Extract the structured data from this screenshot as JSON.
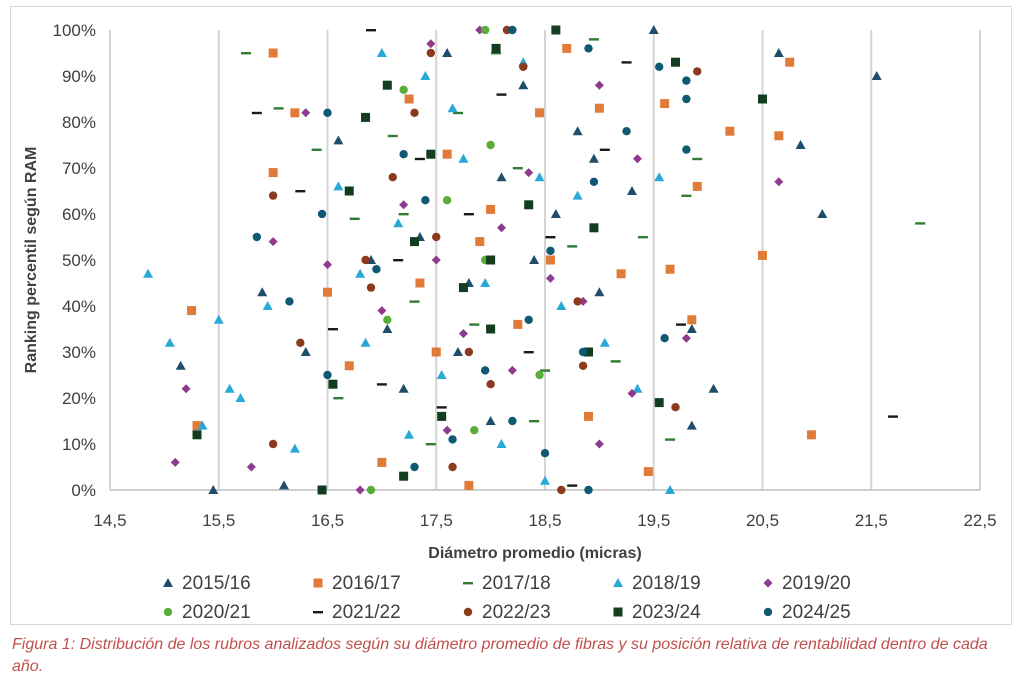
{
  "chart_data": {
    "type": "scatter",
    "xlabel": "Diámetro promedio (micras)",
    "ylabel": "Ranking percentil según RAM",
    "xlim": [
      14.5,
      22.5
    ],
    "ylim": [
      0,
      1
    ],
    "x_ticks": [
      "14,5",
      "15,5",
      "16,5",
      "17,5",
      "18,5",
      "19,5",
      "20,5",
      "21,5",
      "22,5"
    ],
    "y_ticks": [
      "0%",
      "10%",
      "20%",
      "30%",
      "40%",
      "50%",
      "60%",
      "70%",
      "80%",
      "90%",
      "100%"
    ],
    "grid": "vertical",
    "legend_position": "bottom",
    "series": [
      {
        "name": "2015/16",
        "marker": "triangle",
        "color": "#1f4e6b",
        "points": [
          [
            15.45,
            0.0
          ],
          [
            15.15,
            0.27
          ],
          [
            15.9,
            0.43
          ],
          [
            16.3,
            0.3
          ],
          [
            16.6,
            0.76
          ],
          [
            16.9,
            0.5
          ],
          [
            17.2,
            0.22
          ],
          [
            17.35,
            0.55
          ],
          [
            17.6,
            0.95
          ],
          [
            17.8,
            0.45
          ],
          [
            18.0,
            0.15
          ],
          [
            18.1,
            0.68
          ],
          [
            18.3,
            0.88
          ],
          [
            18.6,
            0.6
          ],
          [
            18.8,
            0.78
          ],
          [
            19.0,
            0.43
          ],
          [
            19.3,
            0.65
          ],
          [
            19.5,
            1.0
          ],
          [
            19.85,
            0.14
          ],
          [
            20.05,
            0.22
          ],
          [
            20.65,
            0.95
          ],
          [
            20.85,
            0.75
          ],
          [
            21.05,
            0.6
          ],
          [
            21.55,
            0.9
          ],
          [
            16.1,
            0.01
          ],
          [
            17.05,
            0.35
          ],
          [
            17.7,
            0.3
          ],
          [
            18.4,
            0.5
          ],
          [
            18.95,
            0.72
          ],
          [
            19.85,
            0.35
          ]
        ]
      },
      {
        "name": "2016/17",
        "marker": "square",
        "color": "#e07b39",
        "points": [
          [
            15.25,
            0.39
          ],
          [
            15.3,
            0.14
          ],
          [
            16.0,
            0.95
          ],
          [
            16.0,
            0.69
          ],
          [
            16.2,
            0.82
          ],
          [
            16.5,
            0.43
          ],
          [
            16.7,
            0.27
          ],
          [
            17.0,
            0.06
          ],
          [
            17.25,
            0.85
          ],
          [
            17.5,
            0.3
          ],
          [
            17.6,
            0.73
          ],
          [
            17.8,
            0.01
          ],
          [
            18.0,
            0.61
          ],
          [
            18.25,
            0.36
          ],
          [
            18.55,
            0.5
          ],
          [
            18.7,
            0.96
          ],
          [
            18.9,
            0.16
          ],
          [
            19.0,
            0.83
          ],
          [
            19.2,
            0.47
          ],
          [
            19.45,
            0.04
          ],
          [
            19.6,
            0.84
          ],
          [
            19.65,
            0.48
          ],
          [
            19.9,
            0.66
          ],
          [
            19.85,
            0.37
          ],
          [
            20.2,
            0.78
          ],
          [
            20.5,
            0.51
          ],
          [
            20.65,
            0.77
          ],
          [
            20.75,
            0.93
          ],
          [
            20.95,
            0.12
          ],
          [
            17.35,
            0.45
          ],
          [
            17.9,
            0.54
          ],
          [
            18.45,
            0.82
          ]
        ]
      },
      {
        "name": "2017/18",
        "marker": "dash",
        "color": "#2e7d32",
        "points": [
          [
            15.75,
            0.95
          ],
          [
            16.05,
            0.83
          ],
          [
            16.4,
            0.74
          ],
          [
            16.75,
            0.59
          ],
          [
            17.1,
            0.77
          ],
          [
            17.3,
            0.41
          ],
          [
            17.45,
            0.1
          ],
          [
            17.7,
            0.82
          ],
          [
            17.85,
            0.36
          ],
          [
            18.05,
            0.95
          ],
          [
            18.25,
            0.7
          ],
          [
            18.5,
            0.26
          ],
          [
            18.75,
            0.53
          ],
          [
            18.95,
            0.98
          ],
          [
            19.15,
            0.28
          ],
          [
            19.4,
            0.55
          ],
          [
            19.65,
            0.11
          ],
          [
            19.8,
            0.64
          ],
          [
            19.9,
            0.72
          ],
          [
            21.95,
            0.58
          ],
          [
            16.6,
            0.2
          ],
          [
            17.2,
            0.6
          ],
          [
            18.4,
            0.15
          ]
        ]
      },
      {
        "name": "2018/19",
        "marker": "triangle-up",
        "color": "#29a9d6",
        "points": [
          [
            14.85,
            0.47
          ],
          [
            15.05,
            0.32
          ],
          [
            15.35,
            0.14
          ],
          [
            15.5,
            0.37
          ],
          [
            15.6,
            0.22
          ],
          [
            15.95,
            0.4
          ],
          [
            16.2,
            0.09
          ],
          [
            16.6,
            0.66
          ],
          [
            16.85,
            0.32
          ],
          [
            17.0,
            0.95
          ],
          [
            17.15,
            0.58
          ],
          [
            17.4,
            0.9
          ],
          [
            17.55,
            0.25
          ],
          [
            17.75,
            0.72
          ],
          [
            17.95,
            0.45
          ],
          [
            18.1,
            0.1
          ],
          [
            18.3,
            0.93
          ],
          [
            18.5,
            0.02
          ],
          [
            18.65,
            0.4
          ],
          [
            18.8,
            0.64
          ],
          [
            19.05,
            0.32
          ],
          [
            19.35,
            0.22
          ],
          [
            19.55,
            0.68
          ],
          [
            19.65,
            0.0
          ],
          [
            16.8,
            0.47
          ],
          [
            17.25,
            0.12
          ],
          [
            17.65,
            0.83
          ],
          [
            18.45,
            0.68
          ],
          [
            15.7,
            0.2
          ]
        ]
      },
      {
        "name": "2019/20",
        "marker": "diamond",
        "color": "#8e3a8e",
        "points": [
          [
            15.1,
            0.06
          ],
          [
            15.2,
            0.22
          ],
          [
            15.8,
            0.05
          ],
          [
            16.0,
            0.54
          ],
          [
            16.5,
            0.49
          ],
          [
            16.8,
            0.0
          ],
          [
            17.0,
            0.39
          ],
          [
            17.2,
            0.62
          ],
          [
            17.45,
            0.97
          ],
          [
            17.6,
            0.13
          ],
          [
            17.75,
            0.34
          ],
          [
            17.9,
            1.0
          ],
          [
            18.1,
            0.57
          ],
          [
            18.35,
            0.69
          ],
          [
            18.55,
            0.46
          ],
          [
            18.85,
            0.41
          ],
          [
            19.0,
            0.88
          ],
          [
            19.3,
            0.21
          ],
          [
            19.35,
            0.72
          ],
          [
            19.0,
            0.1
          ],
          [
            19.8,
            0.33
          ],
          [
            20.65,
            0.67
          ],
          [
            16.3,
            0.82
          ],
          [
            17.5,
            0.5
          ],
          [
            18.2,
            0.26
          ]
        ]
      },
      {
        "name": "2020/21",
        "marker": "circle",
        "color": "#5aad3a",
        "points": [
          [
            16.9,
            0.0
          ],
          [
            17.05,
            0.37
          ],
          [
            17.2,
            0.87
          ],
          [
            17.6,
            0.63
          ],
          [
            17.85,
            0.13
          ],
          [
            17.95,
            0.5
          ],
          [
            18.0,
            0.75
          ],
          [
            18.45,
            0.25
          ],
          [
            17.95,
            1.0
          ]
        ]
      },
      {
        "name": "2021/22",
        "marker": "dash",
        "color": "#1a1a1a",
        "points": [
          [
            15.85,
            0.82
          ],
          [
            16.25,
            0.65
          ],
          [
            16.55,
            0.35
          ],
          [
            16.9,
            1.0
          ],
          [
            17.15,
            0.5
          ],
          [
            17.35,
            0.72
          ],
          [
            17.55,
            0.18
          ],
          [
            17.8,
            0.6
          ],
          [
            18.1,
            0.86
          ],
          [
            18.35,
            0.3
          ],
          [
            18.75,
            0.01
          ],
          [
            19.05,
            0.74
          ],
          [
            19.25,
            0.93
          ],
          [
            19.75,
            0.36
          ],
          [
            21.7,
            0.16
          ],
          [
            17.0,
            0.23
          ],
          [
            18.55,
            0.55
          ]
        ]
      },
      {
        "name": "2022/23",
        "marker": "circle",
        "color": "#8b3a1e",
        "points": [
          [
            16.0,
            0.1
          ],
          [
            16.0,
            0.64
          ],
          [
            16.25,
            0.32
          ],
          [
            16.85,
            0.5
          ],
          [
            17.1,
            0.68
          ],
          [
            17.3,
            0.82
          ],
          [
            17.45,
            0.95
          ],
          [
            17.5,
            0.55
          ],
          [
            17.8,
            0.3
          ],
          [
            18.0,
            0.23
          ],
          [
            18.3,
            0.92
          ],
          [
            18.65,
            0.0
          ],
          [
            18.85,
            0.27
          ],
          [
            18.8,
            0.41
          ],
          [
            19.7,
            0.18
          ],
          [
            19.9,
            0.91
          ],
          [
            17.65,
            0.05
          ],
          [
            16.9,
            0.44
          ],
          [
            18.15,
            1.0
          ]
        ]
      },
      {
        "name": "2023/24",
        "marker": "square-filled",
        "color": "#123d1f",
        "points": [
          [
            15.3,
            0.12
          ],
          [
            16.45,
            0.0
          ],
          [
            16.55,
            0.23
          ],
          [
            16.7,
            0.65
          ],
          [
            16.85,
            0.81
          ],
          [
            17.05,
            0.88
          ],
          [
            17.3,
            0.54
          ],
          [
            17.45,
            0.73
          ],
          [
            17.55,
            0.16
          ],
          [
            17.75,
            0.44
          ],
          [
            18.0,
            0.35
          ],
          [
            18.05,
            0.96
          ],
          [
            18.35,
            0.62
          ],
          [
            18.6,
            1.0
          ],
          [
            18.95,
            0.57
          ],
          [
            18.9,
            0.3
          ],
          [
            19.55,
            0.19
          ],
          [
            19.7,
            0.93
          ],
          [
            20.5,
            0.85
          ],
          [
            18.0,
            0.5
          ],
          [
            17.2,
            0.03
          ]
        ]
      },
      {
        "name": "2024/25",
        "marker": "circle",
        "color": "#0f5a72",
        "points": [
          [
            15.85,
            0.55
          ],
          [
            16.15,
            0.41
          ],
          [
            16.45,
            0.6
          ],
          [
            16.5,
            0.82
          ],
          [
            16.95,
            0.48
          ],
          [
            17.2,
            0.73
          ],
          [
            17.4,
            0.63
          ],
          [
            17.65,
            0.11
          ],
          [
            17.95,
            0.26
          ],
          [
            18.2,
            0.15
          ],
          [
            18.35,
            0.37
          ],
          [
            18.5,
            0.08
          ],
          [
            18.55,
            0.52
          ],
          [
            18.85,
            0.3
          ],
          [
            18.9,
            0.0
          ],
          [
            18.95,
            0.67
          ],
          [
            19.25,
            0.78
          ],
          [
            19.55,
            0.92
          ],
          [
            19.6,
            0.33
          ],
          [
            19.8,
            0.85
          ],
          [
            19.8,
            0.74
          ],
          [
            19.8,
            0.89
          ],
          [
            18.9,
            0.96
          ],
          [
            18.2,
            1.0
          ],
          [
            16.5,
            0.25
          ],
          [
            17.3,
            0.05
          ]
        ]
      }
    ]
  },
  "caption": "Figura 1: Distribución de los rubros analizados según su diámetro promedio de fibras y su posición relativa de rentabilidad dentro de cada año."
}
